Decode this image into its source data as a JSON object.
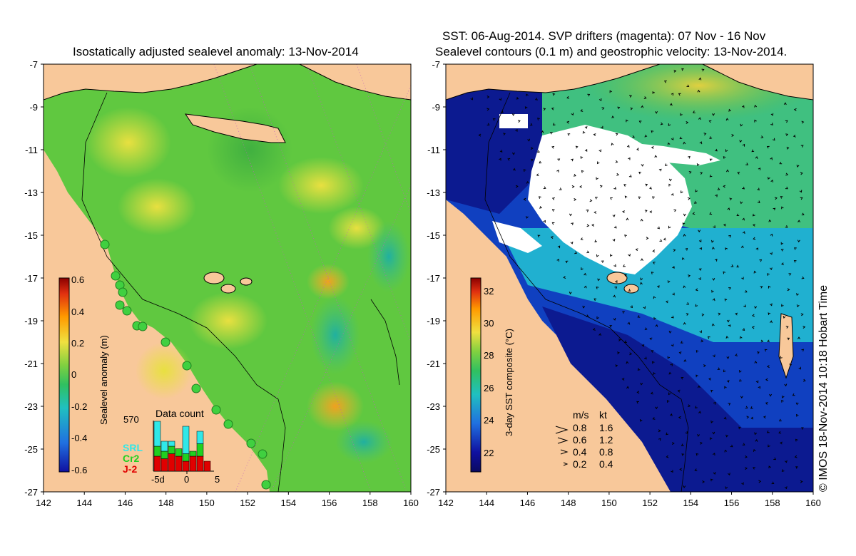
{
  "left_panel": {
    "title": "Isostatically adjusted sealevel anomaly: 13-Nov-2014",
    "colorbar_label": "Sealevel anomaly (m)",
    "colorbar_ticks": [
      "0.6",
      "0.4",
      "0.2",
      "0",
      "-0.2",
      "-0.4",
      "-0.6"
    ],
    "colorbar_colors": [
      "#8b0000",
      "#e03010",
      "#ff9a00",
      "#f0e040",
      "#80d040",
      "#30c060",
      "#20c0c0",
      "#2070e0",
      "#1010a0"
    ],
    "data_count": {
      "title": "Data count",
      "max_label": "570",
      "legend": [
        {
          "label": "SRL",
          "color": "#30e8e8"
        },
        {
          "label": "Cr2",
          "color": "#20d020"
        },
        {
          "label": "J-2",
          "color": "#e00000"
        }
      ],
      "axis_labels": [
        "-5d",
        "0",
        "5"
      ],
      "bars": [
        {
          "J2": 0.3,
          "Cr2": 0.2,
          "SRL": 0.5
        },
        {
          "J2": 0.25,
          "Cr2": 0.15,
          "SRL": 0.2
        },
        {
          "J2": 0.35,
          "Cr2": 0.15,
          "SRL": 0.1
        },
        {
          "J2": 0.3,
          "Cr2": 0.15,
          "SRL": 0.0
        },
        {
          "J2": 0.2,
          "Cr2": 0.15,
          "SRL": 0.55
        },
        {
          "J2": 0.3,
          "Cr2": 0.1,
          "SRL": 0.0
        },
        {
          "J2": 0.3,
          "Cr2": 0.25,
          "SRL": 0.25
        },
        {
          "J2": 0.2,
          "Cr2": 0.0,
          "SRL": 0.0
        }
      ]
    }
  },
  "right_panel": {
    "title_line1": "SST: 06-Aug-2014. SVP drifters (magenta): 07 Nov - 16 Nov",
    "title_line2": "Sealevel contours (0.1 m) and geostrophic velocity: 13-Nov-2014.",
    "colorbar_label": "3-day SST composite (°C)",
    "colorbar_ticks": [
      "32",
      "30",
      "28",
      "26",
      "24",
      "22"
    ],
    "colorbar_colors": [
      "#8b0000",
      "#e03010",
      "#ff9a00",
      "#f0e040",
      "#80d040",
      "#30c060",
      "#20c0c0",
      "#2070e0",
      "#1010a0",
      "#0a0a60"
    ],
    "velocity_legend": {
      "header_ms": "m/s",
      "header_kt": "kt",
      "rows": [
        {
          "ms": "0.8",
          "kt": "1.6"
        },
        {
          "ms": "0.6",
          "kt": "1.2"
        },
        {
          "ms": "0.4",
          "kt": "0.8"
        },
        {
          "ms": "0.2",
          "kt": "0.4"
        }
      ]
    }
  },
  "y_axis_labels": [
    "-7",
    "-9",
    "-11",
    "-13",
    "-15",
    "-17",
    "-19",
    "-21",
    "-23",
    "-25",
    "-27"
  ],
  "x_axis_labels": [
    "142",
    "144",
    "146",
    "148",
    "150",
    "152",
    "154",
    "156",
    "158",
    "160"
  ],
  "credit": "© IMOS 18-Nov-2014 10:18 Hobart Time",
  "colors": {
    "land": "#f8c89a",
    "ocean_sla": "#60c840",
    "cloud": "#ffffff"
  }
}
